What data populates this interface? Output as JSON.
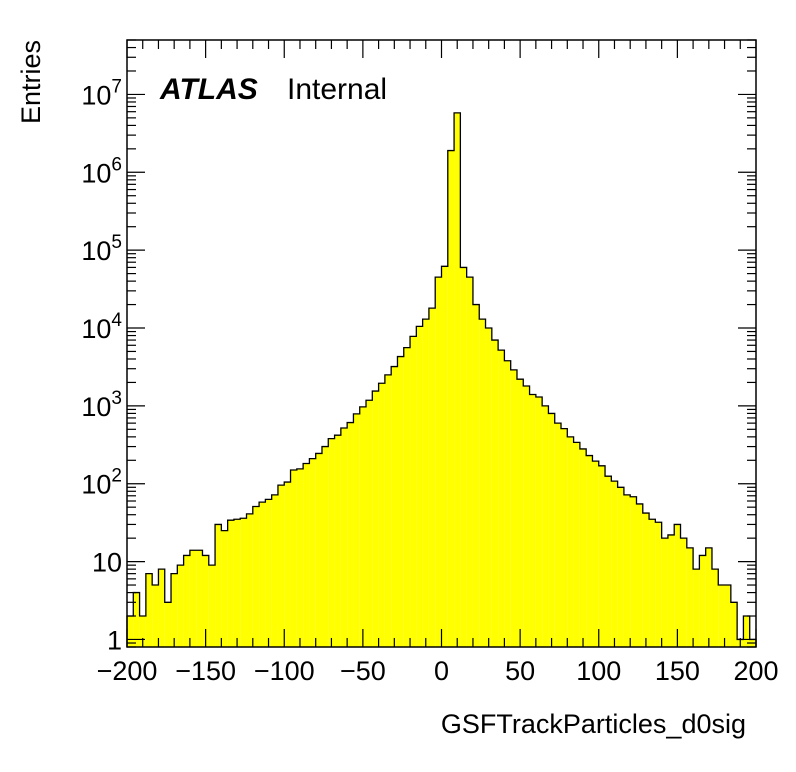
{
  "chart_data": {
    "type": "histogram",
    "title": "",
    "xlabel": "GSFTrackParticles_d0sig",
    "ylabel": "Entries",
    "experiment_label": "ATLAS",
    "status_label": "Internal",
    "x_scale": "linear",
    "y_scale": "log",
    "xlim": [
      -200,
      200
    ],
    "ylim": [
      0.8,
      50000000
    ],
    "bin_width": 4,
    "fill_color": "#ffff00",
    "line_color": "#000000",
    "grid": false,
    "x_ticks": [
      {
        "value": -200,
        "label": "−200"
      },
      {
        "value": -150,
        "label": "−150"
      },
      {
        "value": -100,
        "label": "−100"
      },
      {
        "value": -50,
        "label": "−50"
      },
      {
        "value": 0,
        "label": "0"
      },
      {
        "value": 50,
        "label": "50"
      },
      {
        "value": 100,
        "label": "100"
      },
      {
        "value": 150,
        "label": "150"
      },
      {
        "value": 200,
        "label": "200"
      }
    ],
    "y_ticks": [
      {
        "value": 1,
        "base": "1",
        "exp": ""
      },
      {
        "value": 10,
        "base": "10",
        "exp": ""
      },
      {
        "value": 100,
        "base": "10",
        "exp": "2"
      },
      {
        "value": 1000,
        "base": "10",
        "exp": "3"
      },
      {
        "value": 10000,
        "base": "10",
        "exp": "4"
      },
      {
        "value": 100000,
        "base": "10",
        "exp": "5"
      },
      {
        "value": 1000000,
        "base": "10",
        "exp": "6"
      },
      {
        "value": 10000000,
        "base": "10",
        "exp": "7"
      }
    ],
    "bin_edges_start": -200,
    "values": [
      2,
      4,
      2,
      7,
      5,
      8,
      3,
      7,
      9,
      12,
      14,
      14,
      12,
      9,
      30,
      25,
      34,
      35,
      36,
      41,
      51,
      58,
      63,
      72,
      96,
      105,
      150,
      155,
      182,
      210,
      245,
      300,
      380,
      420,
      520,
      610,
      790,
      970,
      1180,
      1550,
      1950,
      2500,
      3200,
      4300,
      5600,
      7800,
      10500,
      13000,
      18000,
      45000,
      62000,
      1900000,
      5800000,
      60000,
      45000,
      20000,
      13000,
      10000,
      7000,
      5200,
      3800,
      2900,
      2200,
      1800,
      1400,
      1300,
      1000,
      800,
      600,
      510,
      400,
      340,
      280,
      230,
      195,
      170,
      125,
      108,
      90,
      72,
      68,
      55,
      42,
      35,
      32,
      20,
      22,
      30,
      20,
      15,
      8,
      12,
      15,
      8,
      5,
      5,
      3,
      1,
      2,
      1
    ]
  }
}
